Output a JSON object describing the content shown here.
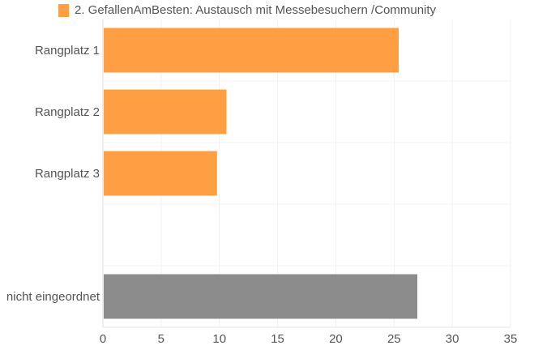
{
  "chart_data": {
    "type": "bar",
    "orientation": "horizontal",
    "title": "",
    "legend": [
      {
        "label": "2. GefallenAmBesten: Austausch mit Messebesuchern /Community",
        "color": "#ff9e42"
      }
    ],
    "legend_position": "top",
    "categories": [
      "Rangplatz 1",
      "Rangplatz 2",
      "Rangplatz 3",
      "",
      "nicht eingeordnet"
    ],
    "values": [
      25.4,
      10.6,
      9.8,
      null,
      27.0
    ],
    "colors": [
      "#ff9e42",
      "#ff9e42",
      "#ff9e42",
      "#ff9e42",
      "#8c8c8c"
    ],
    "xlim": [
      0,
      35
    ],
    "xticks": [
      "0",
      "5",
      "10",
      "15",
      "20",
      "25",
      "30",
      "35"
    ],
    "xlabel": "",
    "ylabel": "",
    "grid": true
  }
}
